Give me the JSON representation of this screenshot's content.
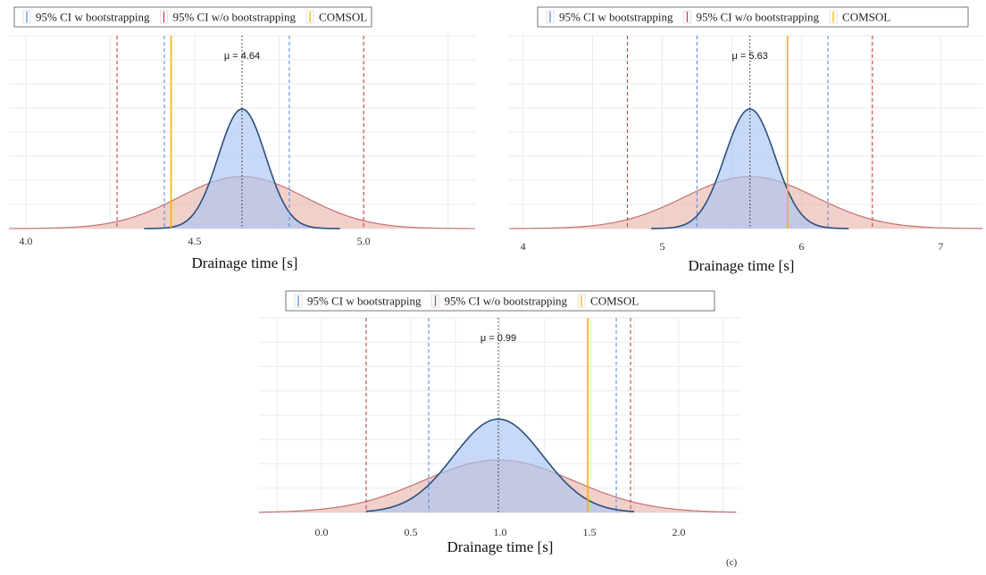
{
  "colors": {
    "bootstrap": "#5b8de0",
    "bootstrap_fill": "#a9c4f2",
    "bootstrap_line": "#2a4f7e",
    "no_bootstrap": "#c44545",
    "no_bootstrap_fill": "#eab0a6",
    "no_bootstrap_line": "#c47070",
    "comsol": "#f4b400",
    "mean": "#333333",
    "grid": "#ebebeb"
  },
  "legend": {
    "items": [
      {
        "label": "95% CI w bootstrapping",
        "color": "#5b8de0"
      },
      {
        "label": "95% CI w/o bootstrapping",
        "color": "#c44545"
      },
      {
        "label": "COMSOL",
        "color": "#f4b400"
      }
    ]
  },
  "panel_label": "(c)",
  "chart_data": [
    {
      "type": "area",
      "title": "",
      "xlabel": "Drainage time [s]",
      "ylabel": "",
      "xlim": [
        3.95,
        5.33
      ],
      "xticks": [
        4.0,
        4.5,
        5.0
      ],
      "xtick_labels": [
        "4.0",
        "4.5",
        "5.0"
      ],
      "grid": true,
      "legend_position": "top",
      "mean": 4.64,
      "mean_label": "μ = 4.64",
      "series": [
        {
          "name": "95% CI w bootstrapping",
          "kind": "normal",
          "mean": 4.64,
          "sd": 0.07,
          "range": [
            4.35,
            4.93
          ],
          "height": 0.62
        },
        {
          "name": "95% CI w/o bootstrapping",
          "kind": "normal",
          "mean": 4.64,
          "sd": 0.185,
          "range": [
            3.95,
            5.33
          ],
          "height": 0.27
        }
      ],
      "vlines": {
        "bootstrap_ci": [
          4.41,
          4.78
        ],
        "no_bootstrap_ci": [
          4.27,
          5.0
        ],
        "comsol": 4.43
      }
    },
    {
      "type": "area",
      "title": "",
      "xlabel": "Drainage time [s]",
      "ylabel": "",
      "xlim": [
        3.9,
        7.3
      ],
      "xticks": [
        4,
        5,
        6,
        7
      ],
      "xtick_labels": [
        "4",
        "5",
        "6",
        "7"
      ],
      "grid": true,
      "legend_position": "top",
      "mean": 5.63,
      "mean_label": "μ = 5.63",
      "series": [
        {
          "name": "95% CI w bootstrapping",
          "kind": "normal",
          "mean": 5.63,
          "sd": 0.18,
          "range": [
            4.92,
            6.34
          ],
          "height": 0.62
        },
        {
          "name": "95% CI w/o bootstrapping",
          "kind": "normal",
          "mean": 5.63,
          "sd": 0.47,
          "range": [
            3.9,
            7.3
          ],
          "height": 0.27
        }
      ],
      "vlines": {
        "bootstrap_ci": [
          5.25,
          6.19
        ],
        "no_bootstrap_ci": [
          4.75,
          6.51
        ],
        "comsol": 5.9
      }
    },
    {
      "type": "area",
      "title": "",
      "xlabel": "Drainage time [s]",
      "ylabel": "",
      "xlim": [
        -0.35,
        2.35
      ],
      "xticks": [
        0.0,
        0.5,
        1.0,
        1.5,
        2.0
      ],
      "xtick_labels": [
        "0.0",
        "0.5",
        "1.0",
        "1.5",
        "2.0"
      ],
      "grid": true,
      "legend_position": "top",
      "mean": 0.99,
      "mean_label": "μ = 0.99",
      "series": [
        {
          "name": "95% CI w bootstrapping",
          "kind": "normal",
          "mean": 0.99,
          "sd": 0.25,
          "range": [
            0.25,
            1.75
          ],
          "height": 0.48
        },
        {
          "name": "95% CI w/o bootstrapping",
          "kind": "normal",
          "mean": 0.99,
          "sd": 0.42,
          "range": [
            -0.35,
            2.32
          ],
          "height": 0.27
        }
      ],
      "vlines": {
        "bootstrap_ci": [
          0.6,
          1.65
        ],
        "no_bootstrap_ci": [
          0.25,
          1.73
        ],
        "comsol": 1.49
      }
    }
  ]
}
